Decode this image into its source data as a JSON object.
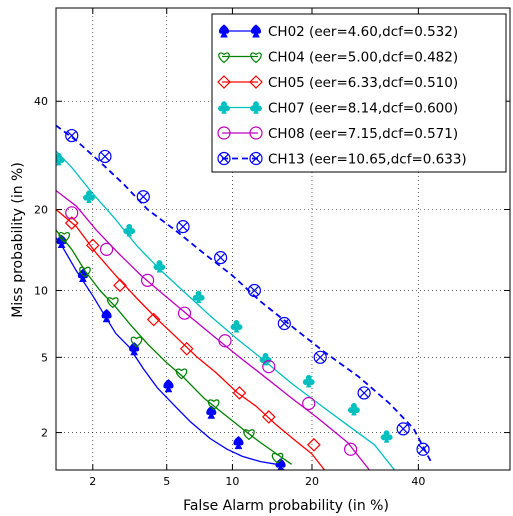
{
  "chart_data": {
    "type": "line",
    "xlabel": "False Alarm probability (in %)",
    "ylabel": "Miss probability (in %)",
    "x_scale": "probit",
    "y_scale": "probit",
    "xlim": [
      1.2,
      60
    ],
    "ylim": [
      1.2,
      60
    ],
    "x_ticks": [
      2,
      5,
      10,
      20,
      40
    ],
    "y_ticks": [
      2,
      5,
      10,
      20,
      40
    ],
    "grid": true,
    "legend_position": "top-right",
    "series": [
      {
        "name": "CH02 (eer=4.60,dcf=0.532)",
        "color": "#0000ff",
        "line_style": "solid",
        "marker": "spade",
        "x": [
          1.2,
          1.3,
          1.6,
          2.0,
          2.3,
          2.7,
          3.2,
          3.8,
          4.5,
          5.5,
          6.5,
          8.0,
          9.5,
          11.0,
          13.0,
          15.0,
          16.0
        ],
        "y": [
          16.0,
          15.0,
          12.0,
          9.5,
          8.0,
          6.5,
          5.6,
          4.4,
          3.5,
          2.8,
          2.3,
          1.85,
          1.6,
          1.45,
          1.35,
          1.3,
          1.2
        ],
        "marker_x": [
          1.3,
          1.75,
          2.4,
          3.4,
          5.1,
          8.1,
          10.6,
          15.5
        ],
        "marker_y": [
          15.5,
          11.5,
          7.8,
          5.5,
          3.6,
          2.6,
          1.75,
          1.29
        ]
      },
      {
        "name": "CH04 (eer=5.00,dcf=0.482)",
        "color": "#008000",
        "line_style": "solid",
        "marker": "heart",
        "x": [
          1.2,
          1.5,
          1.8,
          2.2,
          2.7,
          3.3,
          4.0,
          5.0,
          6.0,
          7.5,
          9.0,
          11.0,
          13.0,
          15.0,
          17.0
        ],
        "y": [
          17.0,
          14.5,
          12.0,
          10.0,
          8.5,
          7.0,
          5.8,
          4.7,
          4.0,
          3.1,
          2.6,
          2.1,
          1.75,
          1.5,
          1.3
        ],
        "marker_x": [
          1.35,
          1.8,
          2.6,
          3.5,
          5.9,
          8.3,
          11.7,
          15.1
        ],
        "marker_y": [
          16.2,
          12.0,
          9.0,
          6.0,
          4.2,
          2.9,
          1.98,
          1.44
        ]
      },
      {
        "name": "CH05 (eer=6.33,dcf=0.510)",
        "color": "#ff0000",
        "line_style": "solid",
        "marker": "diamond",
        "x": [
          1.2,
          1.6,
          2.1,
          2.7,
          3.5,
          4.5,
          5.6,
          7.0,
          8.5,
          10.5,
          12.5,
          15.0,
          17.5,
          20.0,
          22.0
        ],
        "y": [
          20.0,
          17.5,
          14.0,
          11.5,
          9.3,
          7.5,
          6.2,
          5.0,
          4.2,
          3.3,
          2.8,
          2.2,
          1.8,
          1.5,
          1.2
        ],
        "marker_x": [
          1.5,
          2.0,
          2.85,
          4.3,
          6.25,
          10.7,
          14.0,
          20.3
        ],
        "marker_y": [
          18.0,
          15.0,
          10.5,
          7.5,
          5.5,
          3.3,
          2.45,
          1.7
        ]
      },
      {
        "name": "CH07 (eer=8.14,dcf=0.600)",
        "color": "#00bfbf",
        "line_style": "solid",
        "marker": "club",
        "x": [
          1.2,
          1.5,
          2.0,
          2.7,
          3.5,
          4.7,
          6.2,
          8.0,
          10.5,
          13.5,
          17.0,
          21.0,
          26.0,
          31.0,
          35.0
        ],
        "y": [
          30.0,
          27.0,
          22.5,
          18.5,
          15.0,
          12.0,
          9.7,
          7.8,
          6.1,
          4.8,
          3.7,
          2.9,
          2.2,
          1.7,
          1.2
        ],
        "marker_x": [
          1.25,
          1.9,
          3.2,
          4.6,
          7.1,
          10.4,
          13.6,
          19.5,
          27.1,
          33.4
        ],
        "marker_y": [
          28.5,
          22.0,
          17.0,
          12.5,
          9.4,
          7.0,
          4.9,
          3.8,
          2.7,
          1.9
        ]
      },
      {
        "name": "CH08 (eer=7.15,dcf=0.571)",
        "color": "#bf00bf",
        "line_style": "solid",
        "marker": "circle",
        "x": [
          1.2,
          1.6,
          2.1,
          2.8,
          3.7,
          4.9,
          6.4,
          8.3,
          10.5,
          13.5,
          17.0,
          21.0,
          26.0,
          30.0
        ],
        "y": [
          23.0,
          20.5,
          17.0,
          14.0,
          11.5,
          9.5,
          7.8,
          6.3,
          5.1,
          4.0,
          3.1,
          2.4,
          1.75,
          1.2
        ],
        "marker_x": [
          1.5,
          2.4,
          4.0,
          6.1,
          9.3,
          14.0,
          19.5,
          26.5
        ],
        "marker_y": [
          19.5,
          14.5,
          11.0,
          8.0,
          6.0,
          4.5,
          2.9,
          1.6
        ]
      },
      {
        "name": "CH13 (eer=10.65,dcf=0.633)",
        "color": "#0000ff",
        "line_style": "dashed",
        "marker": "circle-x",
        "x": [
          1.2,
          1.6,
          2.2,
          3.0,
          4.0,
          5.5,
          7.5,
          10.0,
          13.0,
          17.0,
          22.0,
          28.0,
          34.0,
          39.0,
          43.0
        ],
        "y": [
          35.0,
          32.0,
          28.0,
          24.0,
          20.0,
          17.0,
          14.0,
          11.5,
          9.0,
          7.0,
          5.3,
          4.0,
          2.9,
          2.1,
          1.3
        ],
        "marker_x": [
          1.5,
          2.35,
          3.8,
          6.0,
          8.9,
          12.3,
          16.0,
          21.3,
          29.0,
          36.8,
          41.0
        ],
        "marker_y": [
          33.0,
          29.0,
          22.0,
          17.5,
          13.5,
          10.0,
          7.2,
          5.0,
          3.3,
          2.1,
          1.6
        ]
      }
    ]
  }
}
